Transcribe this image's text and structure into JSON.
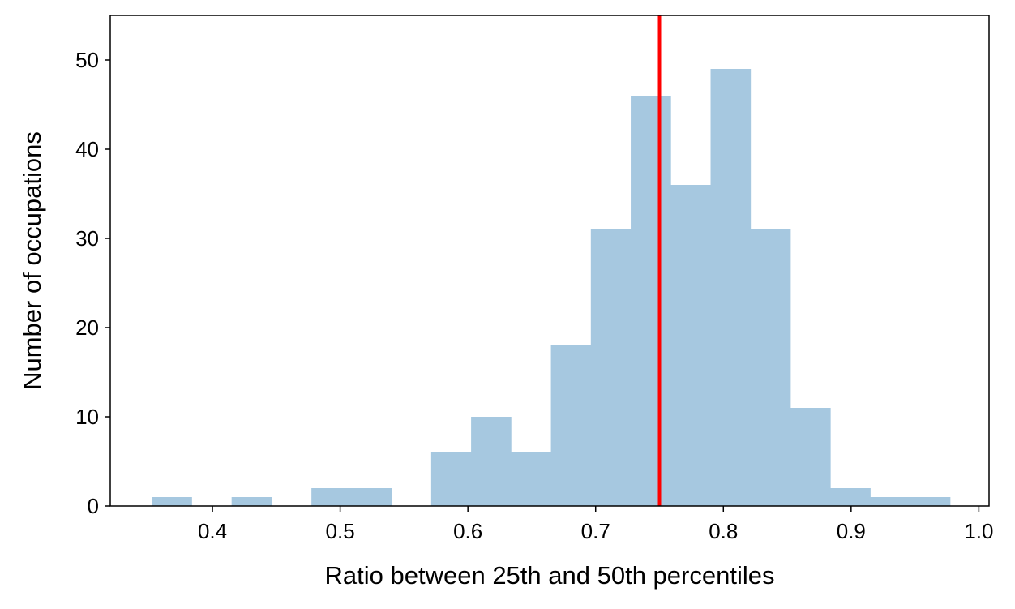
{
  "chart_data": {
    "type": "bar",
    "subtype": "histogram",
    "title": "",
    "xlabel": "Ratio between 25th and 50th percentiles",
    "ylabel": "Number of occupations",
    "xlim": [
      0.32,
      1.008
    ],
    "ylim": [
      0,
      55
    ],
    "bin_start": 0.3525,
    "bin_width": 0.03125,
    "values": [
      1,
      0,
      1,
      0,
      2,
      2,
      0,
      6,
      10,
      6,
      18,
      31,
      46,
      36,
      49,
      31,
      11,
      2,
      1,
      1
    ],
    "bar_color": "#a6c8e0",
    "reference_line": {
      "x": 0.75,
      "color": "#ff0000"
    },
    "xticks": [
      0.4,
      0.5,
      0.6,
      0.7,
      0.8,
      0.9,
      1.0
    ],
    "xtick_labels": [
      "0.4",
      "0.5",
      "0.6",
      "0.7",
      "0.8",
      "0.9",
      "1.0"
    ],
    "yticks": [
      0,
      10,
      20,
      30,
      40,
      50
    ],
    "ytick_labels": [
      "0",
      "10",
      "20",
      "30",
      "40",
      "50"
    ],
    "grid": false,
    "legend": "none"
  }
}
